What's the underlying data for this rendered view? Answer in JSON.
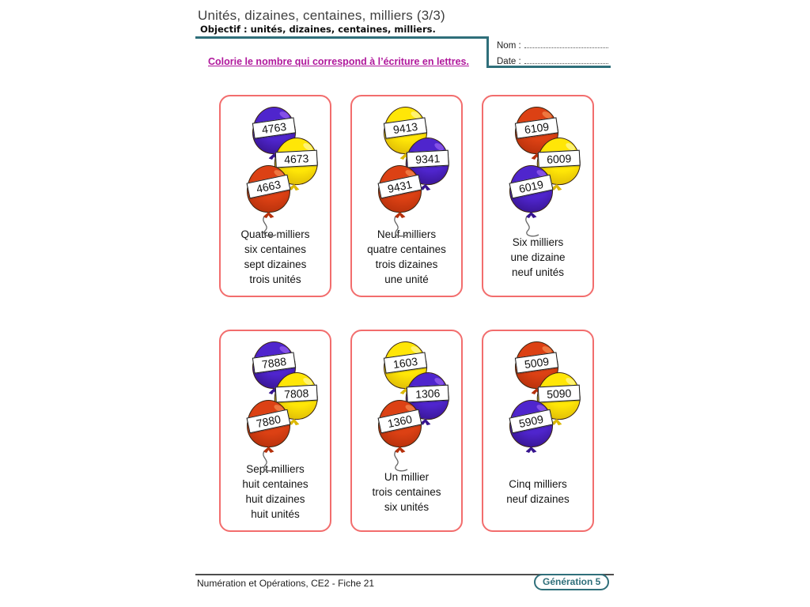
{
  "header": {
    "title": "Unités, dizaines, centaines, milliers (3/3)",
    "objective": "Objectif : unités, dizaines, centaines, milliers.",
    "name_label": "Nom :",
    "date_label": "Date :",
    "instruction": "Colorie le nombre qui correspond à l’écriture en lettres."
  },
  "colors": {
    "teal_accent": "#2f6f7a",
    "instruction_magenta": "#b0189c",
    "card_border": "#f26d6d",
    "balloon_purple": "#4f25cd",
    "balloon_yellow": "#ffe607",
    "balloon_red": "#dc4114"
  },
  "cards": [
    {
      "balloons": [
        {
          "value": "4763",
          "color": "purple",
          "string": false
        },
        {
          "value": "4673",
          "color": "yellow",
          "string": false
        },
        {
          "value": "4663",
          "color": "red",
          "string": true
        }
      ],
      "lines": [
        "Quatre milliers",
        "six centaines",
        "sept dizaines",
        "trois unités"
      ]
    },
    {
      "balloons": [
        {
          "value": "9413",
          "color": "yellow",
          "string": false
        },
        {
          "value": "9341",
          "color": "purple",
          "string": false
        },
        {
          "value": "9431",
          "color": "red",
          "string": true
        }
      ],
      "lines": [
        "Neuf milliers",
        "quatre centaines",
        "trois dizaines",
        "une unité"
      ]
    },
    {
      "balloons": [
        {
          "value": "6109",
          "color": "red",
          "string": false
        },
        {
          "value": "6009",
          "color": "yellow",
          "string": false
        },
        {
          "value": "6019",
          "color": "purple",
          "string": true
        }
      ],
      "lines": [
        "Six milliers",
        "une dizaine",
        "neuf unités"
      ]
    },
    {
      "balloons": [
        {
          "value": "7888",
          "color": "purple",
          "string": false
        },
        {
          "value": "7808",
          "color": "yellow",
          "string": false
        },
        {
          "value": "7880",
          "color": "red",
          "string": true
        }
      ],
      "lines": [
        "Sept milliers",
        "huit centaines",
        "huit dizaines",
        "huit unités"
      ]
    },
    {
      "balloons": [
        {
          "value": "1603",
          "color": "yellow",
          "string": false
        },
        {
          "value": "1306",
          "color": "purple",
          "string": false
        },
        {
          "value": "1360",
          "color": "red",
          "string": true
        }
      ],
      "lines": [
        "Un millier",
        "trois centaines",
        "six unités"
      ]
    },
    {
      "balloons": [
        {
          "value": "5009",
          "color": "red",
          "string": false
        },
        {
          "value": "5090",
          "color": "yellow",
          "string": false
        },
        {
          "value": "5909",
          "color": "purple",
          "string": false
        }
      ],
      "lines": [
        "Cinq milliers",
        "neuf dizaines"
      ]
    }
  ],
  "footer": {
    "left": "Numération et Opérations, CE2 - Fiche 21",
    "badge": "Génération 5"
  }
}
